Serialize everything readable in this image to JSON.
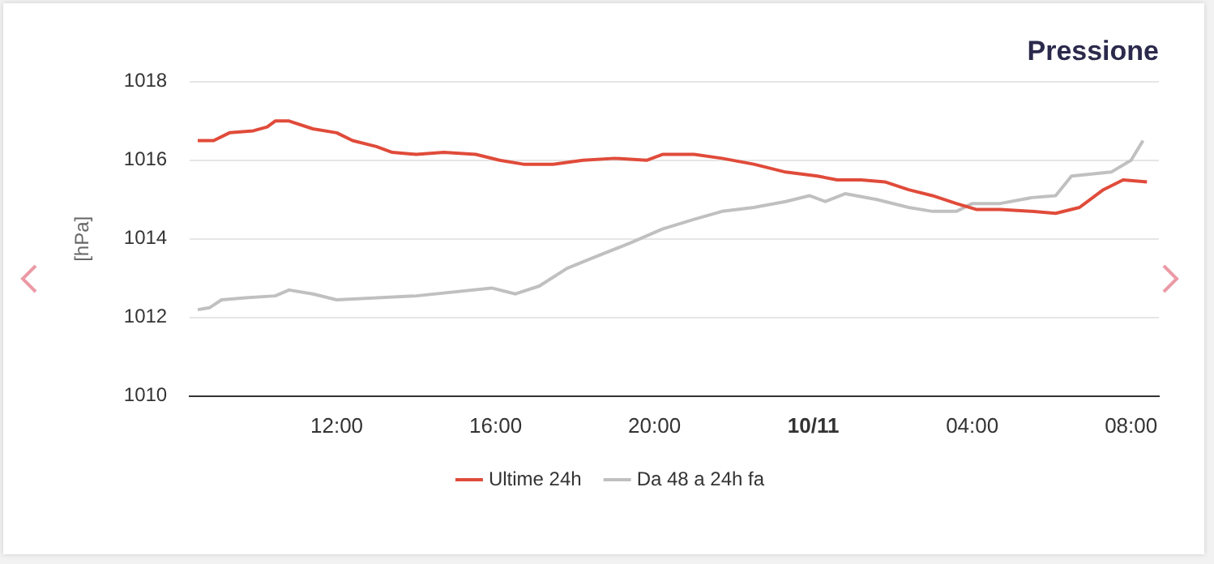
{
  "chart_data": {
    "type": "line",
    "title": "Pressione",
    "ylabel": "[hPa]",
    "xlim": [
      "--10-10T08:18",
      "--10-11T08:42"
    ],
    "xticks": [
      {
        "value": "--10-10T12:00",
        "label": "12:00"
      },
      {
        "value": "--10-10T16:00",
        "label": "16:00"
      },
      {
        "value": "--10-10T20:00",
        "label": "20:00"
      },
      {
        "value": "--10-11T00:00",
        "label": "10/11"
      },
      {
        "value": "--10-11T04:00",
        "label": "04:00"
      },
      {
        "value": "--10-11T08:00",
        "label": "08:00"
      }
    ],
    "ylim": [
      1010,
      1018
    ],
    "yticks": [
      1010,
      1012,
      1014,
      1016,
      1018
    ],
    "grid": "y",
    "legend": "bottom",
    "marker": "none",
    "line_style": "solid",
    "series": [
      {
        "name": "Ultime 24h",
        "color": "#e04b3a",
        "x": [
          "--10-10T08:30",
          "--10-10T08:54",
          "--10-10T09:18",
          "--10-10T09:54",
          "--10-10T10:15",
          "--10-10T10:27",
          "--10-10T10:48",
          "--10-10T11:24",
          "--10-10T12:00",
          "--10-10T12:24",
          "--10-10T13:00",
          "--10-10T13:24",
          "--10-10T14:00",
          "--10-10T14:42",
          "--10-10T15:30",
          "--10-10T16:06",
          "--10-10T16:42",
          "--10-10T17:27",
          "--10-10T18:12",
          "--10-10T19:00",
          "--10-10T19:48",
          "--10-10T20:12",
          "--10-10T21:00",
          "--10-10T21:42",
          "--10-10T22:30",
          "--10-10T23:18",
          "--10-11T00:06",
          "--10-11T00:36",
          "--10-11T01:12",
          "--10-11T01:48",
          "--10-11T02:24",
          "--10-11T03:00",
          "--10-11T03:36",
          "--10-11T04:06",
          "--10-11T04:42",
          "--10-11T05:30",
          "--10-11T06:06",
          "--10-11T06:42",
          "--10-11T07:18",
          "--10-11T07:48",
          "--10-11T08:24"
        ],
        "values": [
          1016.5,
          1016.5,
          1016.7,
          1016.75,
          1016.85,
          1017.0,
          1017.0,
          1016.8,
          1016.7,
          1016.5,
          1016.35,
          1016.2,
          1016.15,
          1016.2,
          1016.15,
          1016.0,
          1015.9,
          1015.9,
          1016.0,
          1016.05,
          1016.0,
          1016.15,
          1016.15,
          1016.05,
          1015.9,
          1015.7,
          1015.6,
          1015.5,
          1015.5,
          1015.45,
          1015.25,
          1015.1,
          1014.9,
          1014.75,
          1014.75,
          1014.7,
          1014.65,
          1014.8,
          1015.25,
          1015.5,
          1015.45
        ]
      },
      {
        "name": "Da 48 a 24h fa",
        "color": "#c0c0c0",
        "x": [
          "--10-10T08:30",
          "--10-10T08:48",
          "--10-10T09:06",
          "--10-10T09:42",
          "--10-10T10:27",
          "--10-10T10:48",
          "--10-10T11:24",
          "--10-10T12:00",
          "--10-10T14:00",
          "--10-10T15:54",
          "--10-10T16:30",
          "--10-10T17:06",
          "--10-10T17:48",
          "--10-10T18:24",
          "--10-10T19:24",
          "--10-10T20:12",
          "--10-10T21:00",
          "--10-10T21:42",
          "--10-10T22:30",
          "--10-10T23:18",
          "--10-10T23:54",
          "--10-11T00:18",
          "--10-11T00:48",
          "--10-11T01:36",
          "--10-11T02:24",
          "--10-11T03:00",
          "--10-11T03:36",
          "--10-11T04:00",
          "--10-11T04:42",
          "--10-11T05:30",
          "--10-11T06:06",
          "--10-11T06:30",
          "--10-11T07:30",
          "--10-11T08:00",
          "--10-11T08:18"
        ],
        "values": [
          1012.2,
          1012.25,
          1012.45,
          1012.5,
          1012.55,
          1012.7,
          1012.6,
          1012.45,
          1012.55,
          1012.75,
          1012.6,
          1012.8,
          1013.25,
          1013.5,
          1013.9,
          1014.25,
          1014.5,
          1014.7,
          1014.8,
          1014.95,
          1015.1,
          1014.95,
          1015.15,
          1015.0,
          1014.8,
          1014.7,
          1014.7,
          1014.9,
          1014.9,
          1015.05,
          1015.1,
          1015.6,
          1015.7,
          1016.0,
          1016.5
        ]
      }
    ]
  }
}
